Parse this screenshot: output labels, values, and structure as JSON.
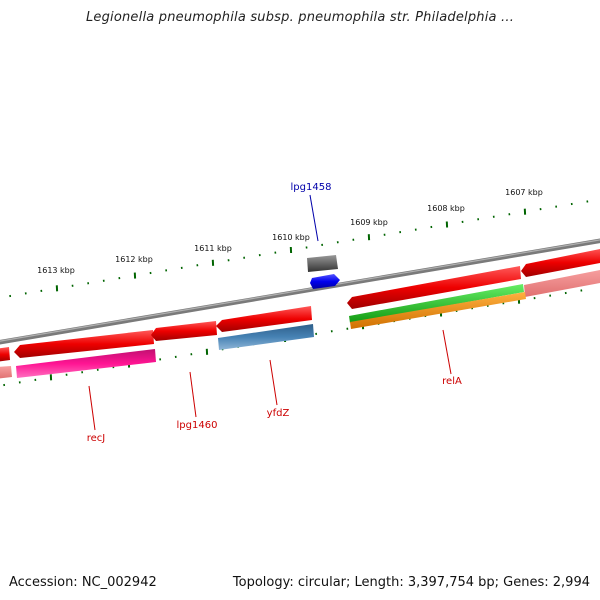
{
  "title": "Legionella pneumophila subsp. pneumophila str. Philadelphia ...",
  "ticks": [
    "1613 kbp",
    "1612 kbp",
    "1611 kbp",
    "1610 kbp",
    "1609 kbp",
    "1608 kbp",
    "1607 kbp"
  ],
  "gene_labels": [
    "lpg1458",
    "recJ",
    "lpg1460",
    "yfdZ",
    "relA"
  ],
  "colors": {
    "feature_red": "#ee0000",
    "feature_pink": "#ff1493",
    "feature_gray": "#666666",
    "feature_blue": "#0000ee",
    "feature_steel": "#4682b4",
    "feature_green": "#22cc22",
    "feature_orange": "#ff8c00",
    "label_red": "#cc0000",
    "label_blue": "#0000aa",
    "tick_green": "#006400",
    "backbone": "#808080"
  },
  "footer": {
    "accession": "Accession: NC_002942",
    "topology": "Topology: circular; Length: 3,397,754 bp; Genes: 2,994"
  }
}
